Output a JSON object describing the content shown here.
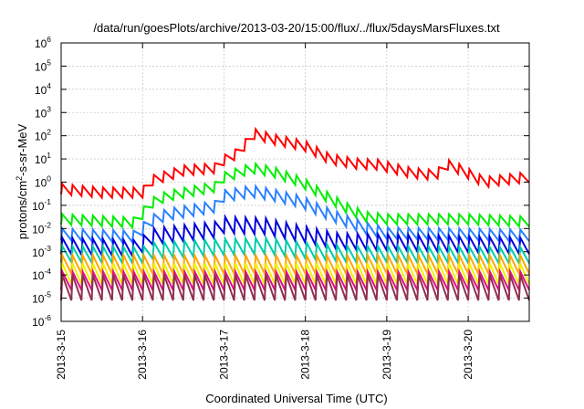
{
  "chart_data": {
    "type": "line",
    "title": "/data/run/goesPlots/archive/2013-03-20/15:00/flux/../flux/5daysMarsFluxes.txt",
    "xlabel": "Coordinated Universal Time (UTC)",
    "ylabel": "protons/cm²-s-sr-MeV",
    "y_scale": "log",
    "ylim_exp": [
      -6,
      6
    ],
    "xlim_days": [
      "2013-03-15",
      "2013-03-20 18:00"
    ],
    "x_ticks": [
      "2013-3-15",
      "2013-3-16",
      "2013-3-17",
      "2013-3-18",
      "2013-3-19",
      "2013-3-20"
    ],
    "y_ticks": [
      {
        "base": "10",
        "exp": "-6"
      },
      {
        "base": "10",
        "exp": "-5"
      },
      {
        "base": "10",
        "exp": "-4"
      },
      {
        "base": "10",
        "exp": "-3"
      },
      {
        "base": "10",
        "exp": "-2"
      },
      {
        "base": "10",
        "exp": "-1"
      },
      {
        "base": "10",
        "exp": "0"
      },
      {
        "base": "10",
        "exp": "1"
      },
      {
        "base": "10",
        "exp": "2"
      },
      {
        "base": "10",
        "exp": "3"
      },
      {
        "base": "10",
        "exp": "4"
      },
      {
        "base": "10",
        "exp": "5"
      },
      {
        "base": "10",
        "exp": "6"
      }
    ],
    "grid": true,
    "series": [
      {
        "color": "#ff0000",
        "sawtooth_amp_log": 0.22,
        "t": [
          0,
          0.5,
          1.0,
          1.1,
          1.5,
          1.9,
          1.95,
          2.2,
          2.35,
          2.6,
          3.0,
          3.3,
          3.6,
          3.9,
          4.3,
          4.6,
          4.75,
          4.9,
          5.2,
          5.7
        ],
        "log10": [
          -0.3,
          -0.45,
          -0.45,
          0.05,
          0.5,
          0.6,
          0.85,
          1.3,
          2.1,
          1.85,
          1.55,
          1.0,
          0.8,
          0.75,
          0.4,
          0.3,
          0.75,
          0.55,
          0.0,
          0.2
        ]
      },
      {
        "color": "#00ee00",
        "sawtooth_amp_log": 0.22,
        "t": [
          0,
          0.95,
          1.05,
          1.3,
          1.9,
          2.0,
          2.3,
          2.35,
          2.6,
          2.95,
          3.2,
          3.55,
          3.75,
          4.0,
          5.0,
          5.7
        ],
        "log10": [
          -1.6,
          -1.75,
          -1.0,
          -0.6,
          -0.2,
          0.2,
          0.55,
          0.6,
          0.45,
          0.0,
          -0.5,
          -1.2,
          -1.5,
          -1.6,
          -1.6,
          -1.7
        ]
      },
      {
        "color": "#2a80ff",
        "sawtooth_amp_log": 0.25,
        "t": [
          0,
          0.95,
          1.05,
          1.3,
          1.9,
          2.0,
          2.35,
          2.6,
          2.95,
          3.2,
          3.55,
          3.75,
          4.0,
          5.0,
          5.7
        ],
        "log10": [
          -2.25,
          -2.35,
          -1.75,
          -1.4,
          -1.05,
          -0.6,
          -0.4,
          -0.55,
          -0.85,
          -1.25,
          -1.75,
          -2.0,
          -2.2,
          -2.25,
          -2.3
        ]
      },
      {
        "color": "#0000dd",
        "sawtooth_amp_log": 0.35,
        "t": [
          0,
          0.95,
          1.1,
          1.9,
          2.0,
          2.5,
          2.9,
          3.4,
          5.7
        ],
        "log10": [
          -2.75,
          -2.85,
          -2.35,
          -2.05,
          -1.85,
          -1.9,
          -2.2,
          -2.55,
          -2.75
        ]
      },
      {
        "color": "#00ccaa",
        "sawtooth_amp_log": 0.35,
        "t": [
          0,
          1.0,
          1.1,
          2.0,
          2.5,
          3.0,
          3.5,
          5.7
        ],
        "log10": [
          -3.1,
          -3.15,
          -2.95,
          -2.8,
          -2.75,
          -2.95,
          -3.1,
          -3.15
        ]
      },
      {
        "color": "#ffa500",
        "sawtooth_amp_log": 0.4,
        "t": [
          0,
          5.7
        ],
        "log10": [
          -3.55,
          -3.55
        ]
      },
      {
        "color": "#f2f200",
        "sawtooth_amp_log": 0.45,
        "t": [
          0,
          5.7
        ],
        "log10": [
          -3.95,
          -3.95
        ]
      },
      {
        "color": "#dd1188",
        "sawtooth_amp_log": 0.4,
        "t": [
          0,
          5.7
        ],
        "log10": [
          -4.25,
          -4.25
        ]
      },
      {
        "color": "#903050",
        "sawtooth_amp_log": 0.55,
        "t": [
          0,
          5.7
        ],
        "log10": [
          -4.55,
          -4.55
        ]
      }
    ]
  }
}
